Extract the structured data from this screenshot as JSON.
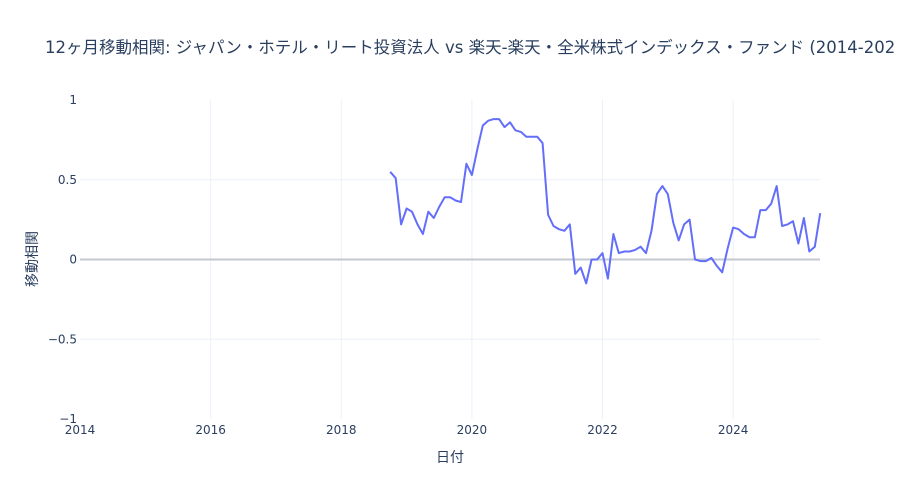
{
  "chart_data": {
    "type": "line",
    "title": "12ヶ月移動相関: ジャパン・ホテル・リート投資法人 vs 楽天-楽天・全米株式インデックス・ファンド (2014-202",
    "xlabel": "日付",
    "ylabel": "移動相関",
    "xlim": [
      2014.0,
      2025.33
    ],
    "ylim": [
      -1,
      1
    ],
    "x_ticks": [
      2014,
      2016,
      2018,
      2020,
      2022,
      2024
    ],
    "x_tick_labels": [
      "2014",
      "2016",
      "2018",
      "2020",
      "2022",
      "2024"
    ],
    "y_ticks": [
      -1,
      -0.5,
      0,
      0.5,
      1
    ],
    "y_tick_labels": [
      "−1",
      "−0.5",
      "0",
      "0.5",
      "1"
    ],
    "grid": true,
    "line_color": "#636efa",
    "series": [
      {
        "name": "移動相関",
        "start": "2018-10",
        "frequency": "monthly",
        "values": [
          0.55,
          0.51,
          0.22,
          0.32,
          0.3,
          0.22,
          0.16,
          0.3,
          0.26,
          0.33,
          0.39,
          0.39,
          0.37,
          0.36,
          0.6,
          0.53,
          0.69,
          0.84,
          0.87,
          0.88,
          0.88,
          0.83,
          0.86,
          0.81,
          0.8,
          0.77,
          0.77,
          0.77,
          0.73,
          0.28,
          0.21,
          0.19,
          0.18,
          0.22,
          -0.09,
          -0.05,
          -0.15,
          0.0,
          0.0,
          0.04,
          -0.12,
          0.16,
          0.04,
          0.05,
          0.05,
          0.06,
          0.08,
          0.04,
          0.18,
          0.41,
          0.46,
          0.41,
          0.23,
          0.12,
          0.22,
          0.25,
          0.0,
          -0.01,
          -0.01,
          0.01,
          -0.04,
          -0.08,
          0.07,
          0.2,
          0.19,
          0.16,
          0.14,
          0.14,
          0.31,
          0.31,
          0.35,
          0.46,
          0.21,
          0.22,
          0.24,
          0.1,
          0.26,
          0.05,
          0.08,
          0.29
        ]
      }
    ]
  }
}
